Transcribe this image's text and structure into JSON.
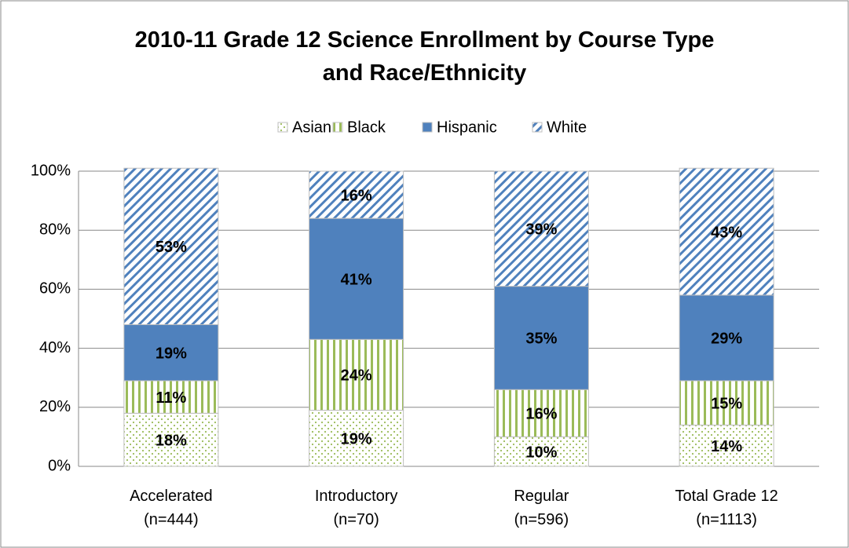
{
  "chart_data": {
    "type": "stacked_bar",
    "title": "2010-11 Grade 12 Science Enrollment by Course Type\nand Race/Ethnicity",
    "categories": [
      "Accelerated\n(n=444)",
      "Introductory\n(n=70)",
      "Regular\n(n=596)",
      "Total Grade 12\n(n=1113)"
    ],
    "series": [
      {
        "name": "Asian",
        "color": "#9bbb59",
        "pattern": "dots",
        "values": [
          18,
          19,
          10,
          14
        ],
        "value_labels": [
          "18%",
          "19%",
          "10%",
          "14%"
        ]
      },
      {
        "name": "Black",
        "color": "#9bbb59",
        "pattern": "vertical",
        "values": [
          11,
          24,
          16,
          15
        ],
        "value_labels": [
          "11%",
          "24%",
          "16%",
          "15%"
        ]
      },
      {
        "name": "Hispanic",
        "color": "#4f81bd",
        "pattern": "solid",
        "values": [
          19,
          41,
          35,
          29
        ],
        "value_labels": [
          "19%",
          "41%",
          "35%",
          "29%"
        ]
      },
      {
        "name": "White",
        "color": "#4f81bd",
        "pattern": "diagonal",
        "values": [
          53,
          16,
          39,
          43
        ],
        "value_labels": [
          "53%",
          "16%",
          "39%",
          "43%"
        ]
      }
    ],
    "ylim": [
      0,
      100
    ],
    "yticks": [
      {
        "value": 0,
        "label": "0%"
      },
      {
        "value": 20,
        "label": "20%"
      },
      {
        "value": 40,
        "label": "40%"
      },
      {
        "value": 60,
        "label": "60%"
      },
      {
        "value": 80,
        "label": "80%"
      },
      {
        "value": 100,
        "label": "100%"
      }
    ],
    "grid": true,
    "legend": "top"
  }
}
